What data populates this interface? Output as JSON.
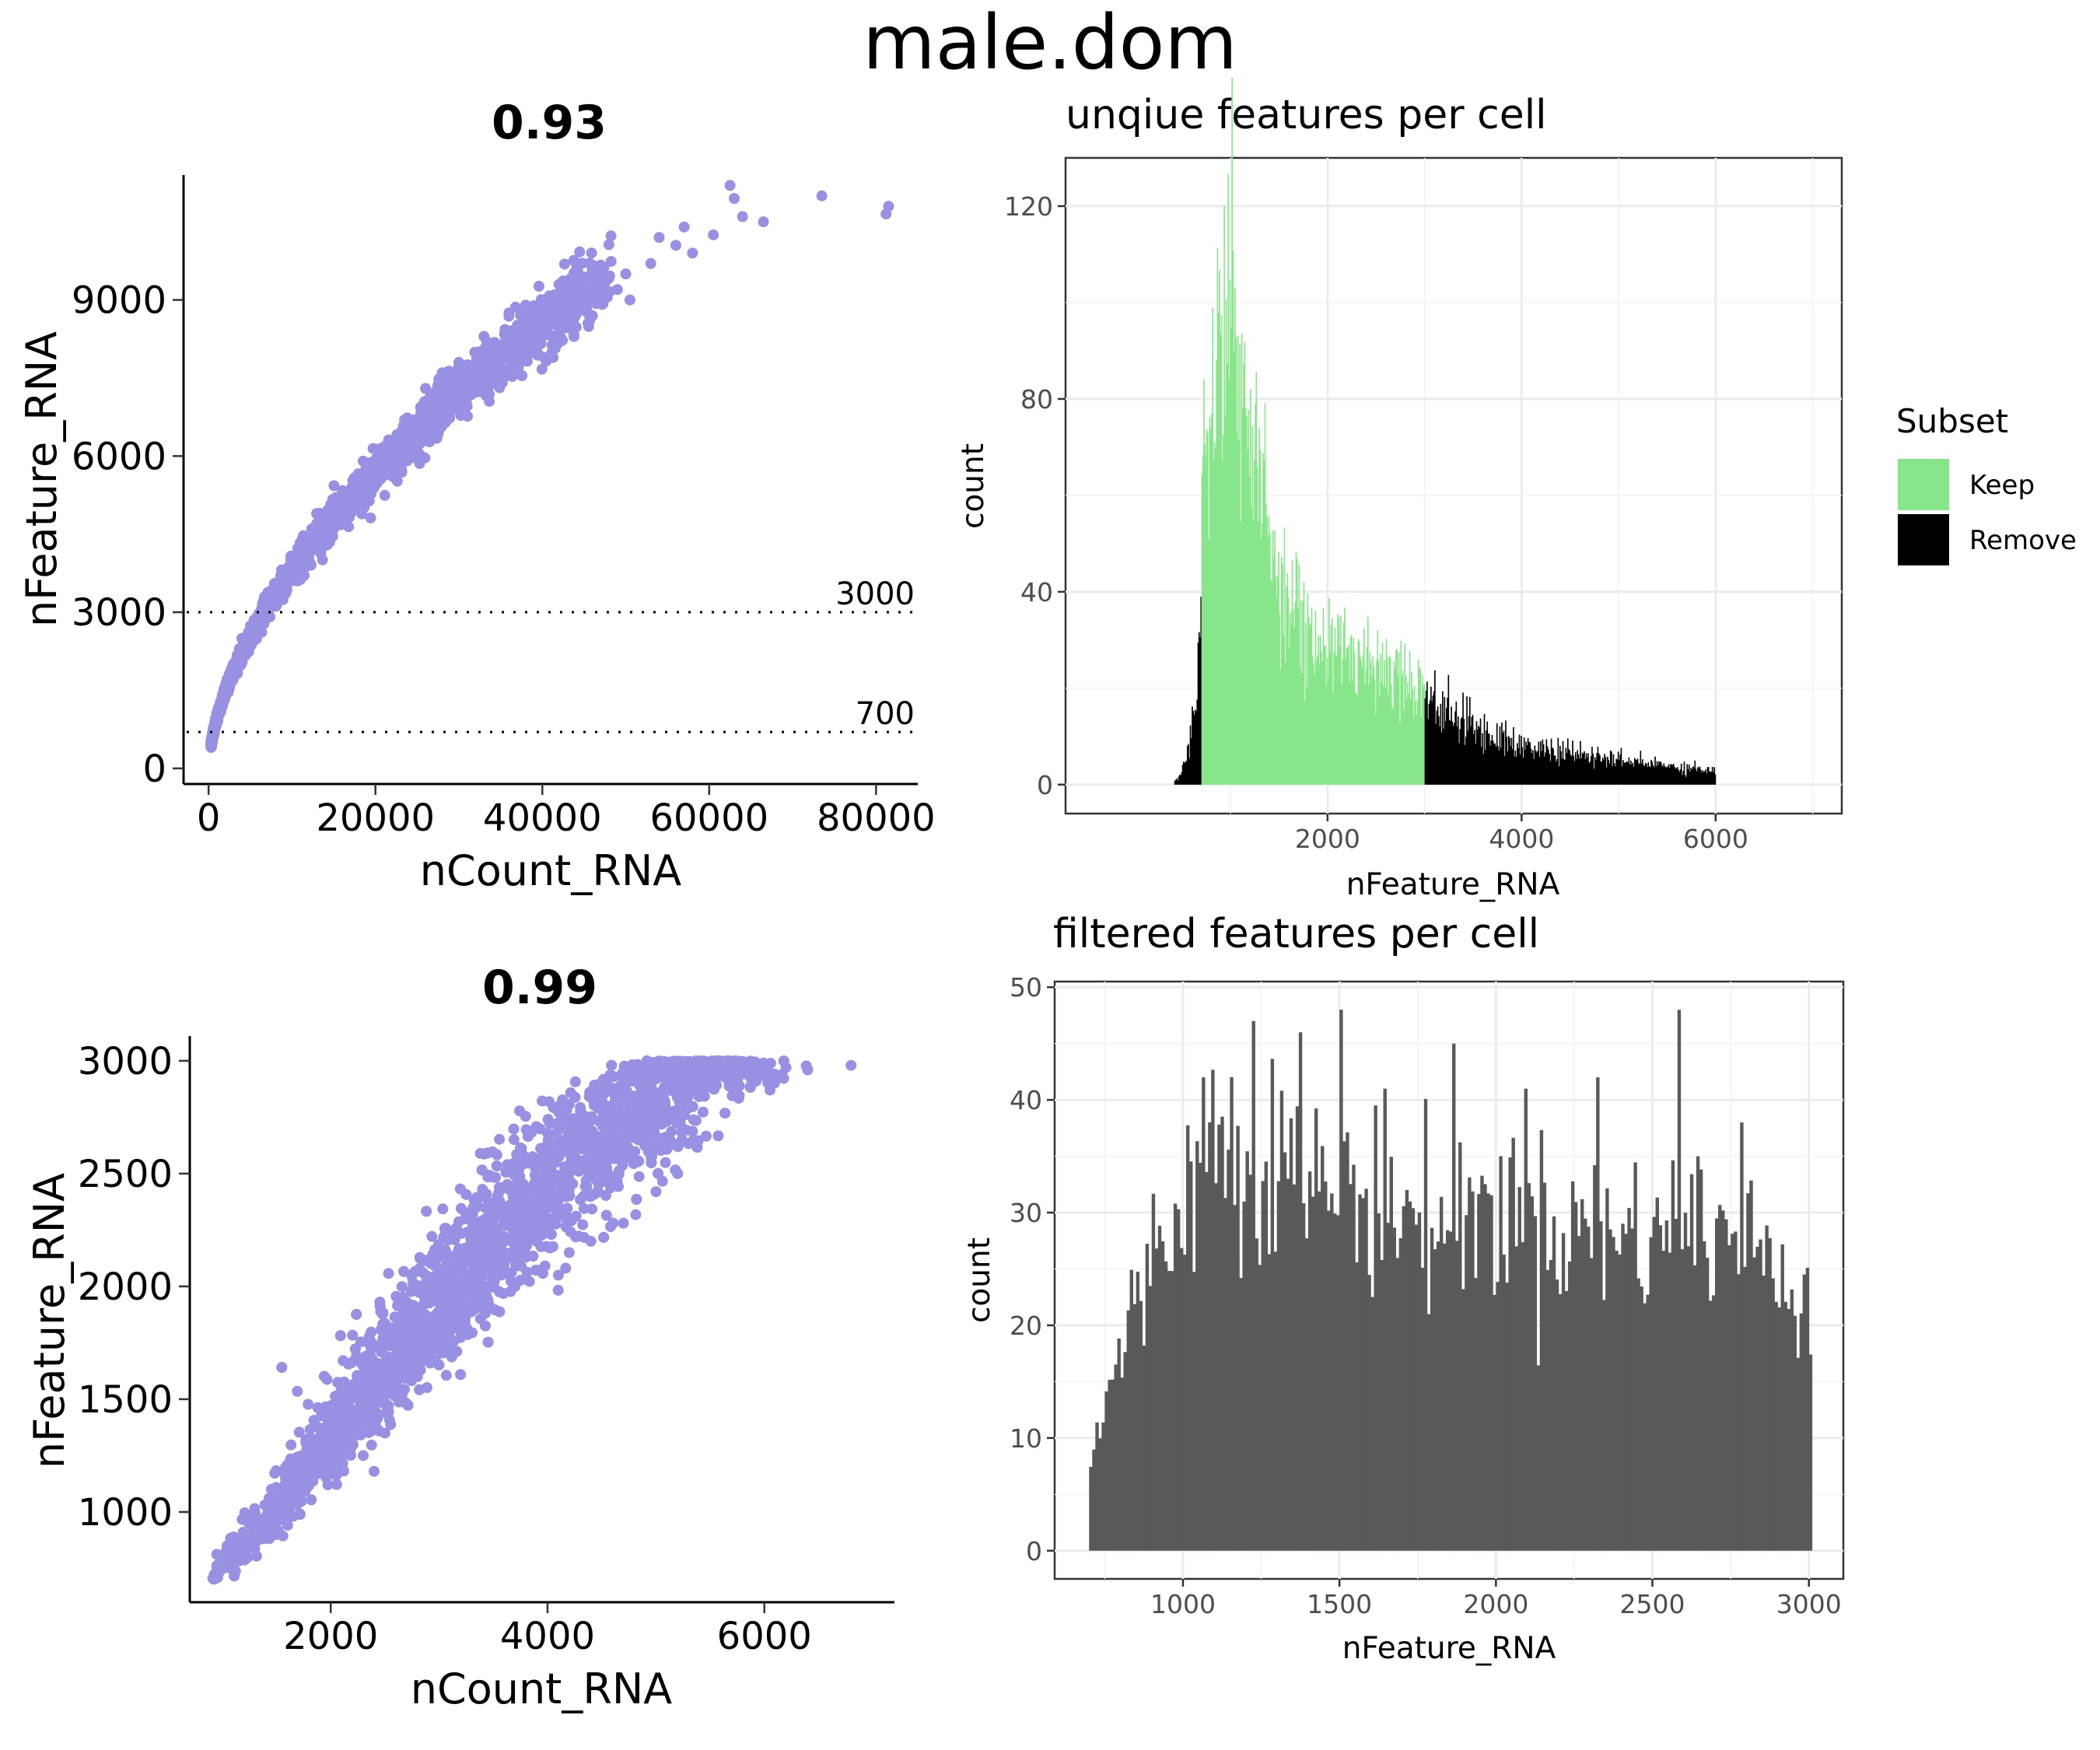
{
  "figure": {
    "title": "male.dom"
  },
  "chart_data": [
    {
      "id": "scatter_top",
      "type": "scatter",
      "title": "0.93",
      "xlabel": "nCount_RNA",
      "ylabel": "nFeature_RNA",
      "xlim": [
        -3000,
        85000
      ],
      "ylim": [
        -300,
        11400
      ],
      "xticks": [
        0,
        20000,
        40000,
        60000,
        80000
      ],
      "yticks": [
        0,
        3000,
        6000,
        9000
      ],
      "point_color": "#9890e3",
      "hlines": [
        {
          "y": 3000,
          "label": "3000"
        },
        {
          "y": 700,
          "label": "700"
        }
      ],
      "trend": {
        "x_max": 52000,
        "y_at_x_max": 10000,
        "exponent": 0.58,
        "y_min": 400
      },
      "points": [
        [
          62500,
          11200
        ],
        [
          73500,
          11000
        ],
        [
          81500,
          10800
        ],
        [
          81200,
          10650
        ],
        [
          66500,
          10500
        ],
        [
          64000,
          10600
        ],
        [
          63000,
          10950
        ],
        [
          57000,
          10400
        ],
        [
          56000,
          10050
        ],
        [
          58000,
          9900
        ],
        [
          60500,
          10250
        ],
        [
          54000,
          10200
        ],
        [
          53000,
          9700
        ],
        [
          50000,
          9500
        ],
        [
          49000,
          9200
        ],
        [
          50500,
          9000
        ],
        [
          42000,
          9300
        ],
        [
          41500,
          9100
        ],
        [
          45000,
          9050
        ],
        [
          44000,
          8700
        ],
        [
          38000,
          8900
        ],
        [
          36000,
          8750
        ],
        [
          33000,
          8300
        ],
        [
          35000,
          8050
        ],
        [
          30000,
          7800
        ],
        [
          28000,
          7600
        ],
        [
          26000,
          7300
        ]
      ]
    },
    {
      "id": "hist_unique",
      "type": "bar",
      "title": "unqiue features per cell",
      "xlabel": "nFeature_RNA",
      "ylabel": "count",
      "xlim": [
        -700,
        7300
      ],
      "ylim": [
        -6,
        130
      ],
      "xticks": [
        2000,
        4000,
        6000
      ],
      "yticks": [
        0,
        40,
        80,
        120
      ],
      "legend": {
        "title": "Subset",
        "entries": [
          {
            "label": "Keep",
            "color": "#88e68a"
          },
          {
            "label": "Remove",
            "color": "#000000"
          }
        ]
      },
      "thresholds": [
        700,
        3000
      ],
      "profile": [
        [
          400,
          0
        ],
        [
          500,
          3
        ],
        [
          600,
          12
        ],
        [
          650,
          25
        ],
        [
          690,
          40
        ],
        [
          700,
          58
        ],
        [
          780,
          75
        ],
        [
          860,
          95
        ],
        [
          950,
          110
        ],
        [
          1050,
          92
        ],
        [
          1200,
          70
        ],
        [
          1400,
          52
        ],
        [
          1600,
          40
        ],
        [
          1800,
          30
        ],
        [
          2000,
          28
        ],
        [
          2300,
          27
        ],
        [
          2600,
          25
        ],
        [
          3000,
          20
        ],
        [
          3200,
          15
        ],
        [
          3500,
          12
        ],
        [
          4000,
          8
        ],
        [
          5000,
          5
        ],
        [
          6000,
          3
        ]
      ],
      "bin_width": 10
    },
    {
      "id": "scatter_bottom",
      "type": "scatter",
      "title": "0.99",
      "xlabel": "nCount_RNA",
      "ylabel": "nFeature_RNA",
      "xlim": [
        700,
        7200
      ],
      "ylim": [
        600,
        3110
      ],
      "xticks": [
        2000,
        4000,
        6000
      ],
      "yticks": [
        1000,
        1500,
        2000,
        2500,
        3000
      ],
      "point_color": "#9890e3",
      "curve": [
        [
          900,
          700
        ],
        [
          1500,
          1000
        ],
        [
          2000,
          1300
        ],
        [
          2500,
          1600
        ],
        [
          3000,
          1900
        ],
        [
          3500,
          2200
        ],
        [
          4000,
          2420
        ],
        [
          4500,
          2650
        ],
        [
          5000,
          2870
        ],
        [
          5500,
          3000
        ],
        [
          6000,
          3000
        ]
      ],
      "points": [
        [
          6800,
          2980
        ],
        [
          6400,
          2960
        ],
        [
          6200,
          2970
        ],
        [
          5200,
          2500
        ],
        [
          5000,
          2420
        ],
        [
          4700,
          2280
        ],
        [
          4400,
          2200
        ],
        [
          4200,
          2150
        ],
        [
          4100,
          2050
        ],
        [
          3700,
          2000
        ],
        [
          3200,
          1800
        ],
        [
          3100,
          1700
        ],
        [
          2800,
          1600
        ],
        [
          2500,
          1350
        ],
        [
          2400,
          1180
        ],
        [
          2300,
          1250
        ]
      ]
    },
    {
      "id": "hist_filtered",
      "type": "bar",
      "title": "filtered features per cell",
      "xlabel": "nFeature_RNA",
      "ylabel": "count",
      "xlim": [
        590,
        3110
      ],
      "ylim": [
        -2.5,
        50.5
      ],
      "xticks": [
        1000,
        1500,
        2000,
        2500,
        3000
      ],
      "yticks": [
        0,
        10,
        20,
        30,
        40,
        50
      ],
      "bar_color": "#595959",
      "profile": [
        [
          700,
          8
        ],
        [
          750,
          13
        ],
        [
          800,
          18
        ],
        [
          900,
          26
        ],
        [
          1000,
          32
        ],
        [
          1100,
          37
        ],
        [
          1200,
          36
        ],
        [
          1400,
          33
        ],
        [
          1600,
          31
        ],
        [
          1800,
          29
        ],
        [
          2000,
          30
        ],
        [
          2200,
          29
        ],
        [
          2400,
          28
        ],
        [
          2600,
          29
        ],
        [
          2800,
          27
        ],
        [
          2900,
          25
        ],
        [
          3000,
          23
        ]
      ],
      "spikes": [
        [
          1060,
          42
        ],
        [
          1220,
          47
        ],
        [
          1370,
          46
        ],
        [
          1500,
          48
        ],
        [
          1860,
          45
        ],
        [
          2320,
          42
        ],
        [
          2580,
          48
        ],
        [
          2780,
          38
        ],
        [
          2010,
          35
        ],
        [
          1640,
          41
        ],
        [
          2090,
          41
        ],
        [
          2640,
          35
        ]
      ],
      "bin_width": 10
    }
  ]
}
